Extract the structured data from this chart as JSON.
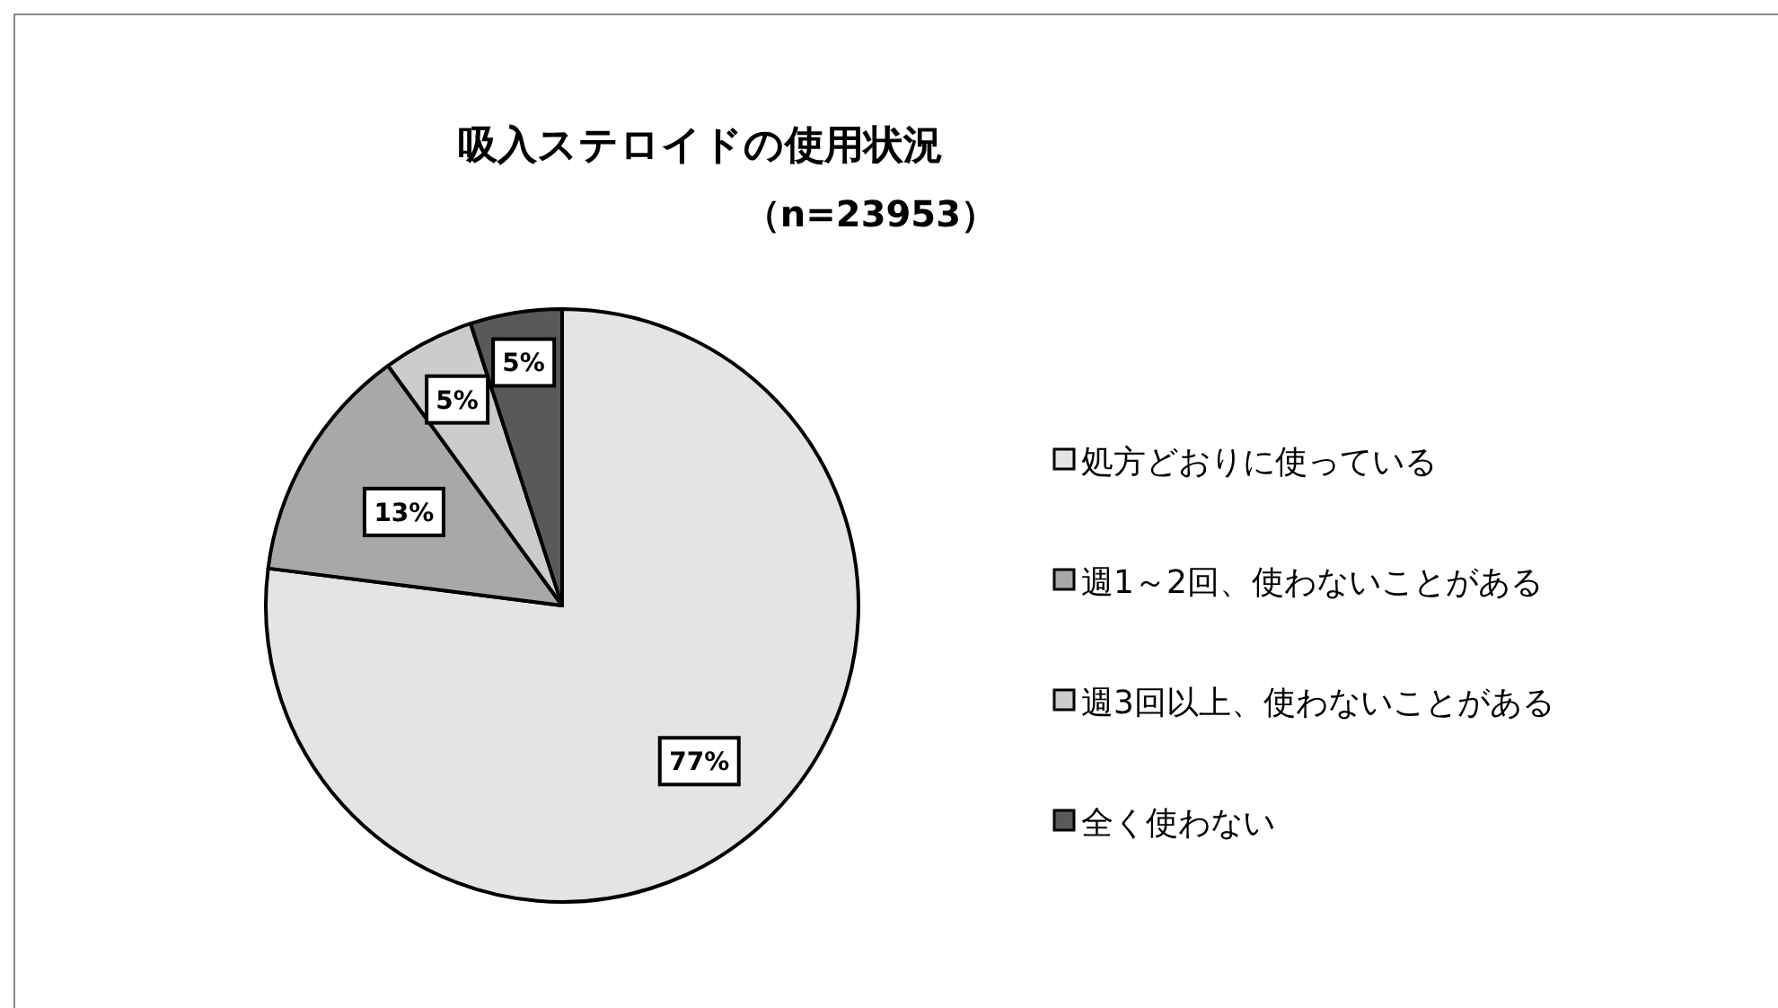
{
  "chart_data": {
    "type": "pie",
    "title": "吸入ステロイドの使用状況",
    "subtitle": "（n=23953）",
    "categories": [
      "処方どおりに使っている",
      "週1～2回、使わないことがある",
      "週3回以上、使わないことがある",
      "全く使わない"
    ],
    "values": [
      77,
      13,
      5,
      5
    ],
    "value_labels": [
      "77%",
      "13%",
      "5%",
      "5%"
    ],
    "colors": [
      "#e4e4e4",
      "#a8a8a8",
      "#cccccc",
      "#595959"
    ],
    "legend": "right"
  }
}
